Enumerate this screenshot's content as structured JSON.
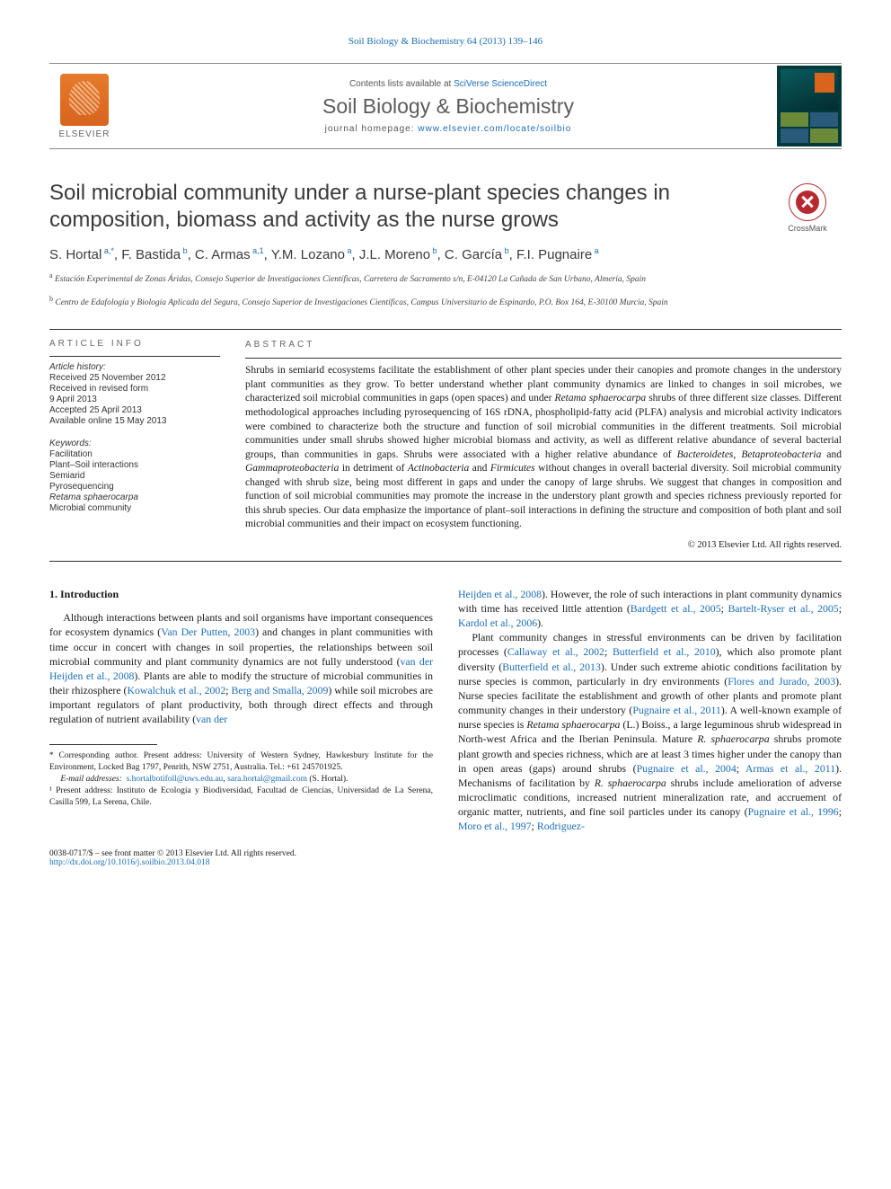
{
  "top_link": "Soil Biology & Biochemistry 64 (2013) 139–146",
  "header": {
    "contents_prefix": "Contents lists available at ",
    "contents_link": "SciVerse ScienceDirect",
    "journal": "Soil Biology & Biochemistry",
    "homepage_prefix": "journal homepage: ",
    "homepage": "www.elsevier.com/locate/soilbio",
    "publisher": "ELSEVIER"
  },
  "crossmark": "CrossMark",
  "title": "Soil microbial community under a nurse-plant species changes in composition, biomass and activity as the nurse grows",
  "authors": [
    {
      "name": "S. Hortal",
      "sup": "a,*"
    },
    {
      "name": "F. Bastida",
      "sup": "b"
    },
    {
      "name": "C. Armas",
      "sup": "a,1"
    },
    {
      "name": "Y.M. Lozano",
      "sup": "a"
    },
    {
      "name": "J.L. Moreno",
      "sup": "b"
    },
    {
      "name": "C. García",
      "sup": "b"
    },
    {
      "name": "F.I. Pugnaire",
      "sup": "a"
    }
  ],
  "affiliations": {
    "a": "Estación Experimental de Zonas Áridas, Consejo Superior de Investigaciones Científicas, Carretera de Sacramento s/n, E-04120 La Cañada de San Urbano, Almería, Spain",
    "b": "Centro de Edafología y Biología Aplicada del Segura, Consejo Superior de Investigaciones Científicas, Campus Universitario de Espinardo, P.O. Box 164, E-30100 Murcia, Spain"
  },
  "article_info": {
    "heading": "ARTICLE INFO",
    "history_label": "Article history:",
    "received": "Received 25 November 2012",
    "revised": "Received in revised form",
    "revised_date": "9 April 2013",
    "accepted": "Accepted 25 April 2013",
    "online": "Available online 15 May 2013",
    "keywords_label": "Keywords:",
    "keywords": [
      "Facilitation",
      "Plant–Soil interactions",
      "Semiarid",
      "Pyrosequencing",
      "Retama sphaerocarpa",
      "Microbial community"
    ]
  },
  "abstract": {
    "heading": "ABSTRACT",
    "text": "Shrubs in semiarid ecosystems facilitate the establishment of other plant species under their canopies and promote changes in the understory plant communities as they grow. To better understand whether plant community dynamics are linked to changes in soil microbes, we characterized soil microbial communities in gaps (open spaces) and under Retama sphaerocarpa shrubs of three different size classes. Different methodological approaches including pyrosequencing of 16S rDNA, phospholipid-fatty acid (PLFA) analysis and microbial activity indicators were combined to characterize both the structure and function of soil microbial communities in the different treatments. Soil microbial communities under small shrubs showed higher microbial biomass and activity, as well as different relative abundance of several bacterial groups, than communities in gaps. Shrubs were associated with a higher relative abundance of Bacteroidetes, Betaproteobacteria and Gammaproteobacteria in detriment of Actinobacteria and Firmicutes without changes in overall bacterial diversity. Soil microbial community changed with shrub size, being most different in gaps and under the canopy of large shrubs. We suggest that changes in composition and function of soil microbial communities may promote the increase in the understory plant growth and species richness previously reported for this shrub species. Our data emphasize the importance of plant–soil interactions in defining the structure and composition of both plant and soil microbial communities and their impact on ecosystem functioning.",
    "copyright": "© 2013 Elsevier Ltd. All rights reserved."
  },
  "intro": {
    "heading": "1. Introduction",
    "p1_a": "Although interactions between plants and soil organisms have important consequences for ecosystem dynamics (",
    "p1_link1": "Van Der Putten, 2003",
    "p1_b": ") and changes in plant communities with time occur in concert with changes in soil properties, the relationships between soil microbial community and plant community dynamics are not fully understood (",
    "p1_link2": "van der Heijden et al., 2008",
    "p1_c": "). Plants are able to modify the structure of microbial communities in their rhizosphere (",
    "p1_link3": "Kowalchuk et al., 2002",
    "p1_sep1": "; ",
    "p1_link4": "Berg and Smalla, 2009",
    "p1_d": ") while soil microbes are important regulators of plant productivity, both through direct effects and through regulation of nutrient availability (",
    "p1_link5": "van der",
    "col2_cont_link": "Heijden et al., 2008",
    "col2_cont_a": "). However, the role of such interactions in plant community dynamics with time has received little attention (",
    "col2_link1": "Bardgett et al., 2005",
    "col2_sep1": "; ",
    "col2_link2": "Bartelt-Ryser et al., 2005",
    "col2_sep2": "; ",
    "col2_link3": "Kardol et al., 2006",
    "col2_cont_b": ").",
    "p2_a": "Plant community changes in stressful environments can be driven by facilitation processes (",
    "p2_link1": "Callaway et al., 2002",
    "p2_sep1": "; ",
    "p2_link2": "Butterfield et al., 2010",
    "p2_b": "), which also promote plant diversity (",
    "p2_link3": "Butterfield et al., 2013",
    "p2_c": "). Under such extreme abiotic conditions facilitation by nurse species is common, particularly in dry environments (",
    "p2_link4": "Flores and Jurado, 2003",
    "p2_d": "). Nurse species facilitate the establishment and growth of other plants and promote plant community changes in their understory (",
    "p2_link5": "Pugnaire et al., 2011",
    "p2_e": "). A well-known example of nurse species is ",
    "p2_sp1": "Retama sphaerocarpa",
    "p2_f": " (L.) Boiss., a large leguminous shrub widespread in North-west Africa and the Iberian Peninsula. Mature ",
    "p2_sp2": "R. sphaerocarpa",
    "p2_g": " shrubs promote plant growth and species richness, which are at least 3 times higher under the canopy than in open areas (gaps) around shrubs (",
    "p2_link6": "Pugnaire et al., 2004",
    "p2_sep2": "; ",
    "p2_link7": "Armas et al., 2011",
    "p2_h": "). Mechanisms of facilitation by ",
    "p2_sp3": "R. sphaerocarpa",
    "p2_i": " shrubs include amelioration of adverse microclimatic conditions, increased nutrient mineralization rate, and accruement of organic matter, nutrients, and fine soil particles under its canopy (",
    "p2_link8": "Pugnaire et al., 1996",
    "p2_sep3": "; ",
    "p2_link9": "Moro et al., 1997",
    "p2_sep4": "; ",
    "p2_link10": "Rodriguez-"
  },
  "footnotes": {
    "corr_label": "* Corresponding author. Present address: University of Western Sydney, Hawkesbury Institute for the Environment, Locked Bag 1797, Penrith, NSW 2751, Australia. Tel.: +61 245701925.",
    "email_label": "E-mail addresses:",
    "email1": "s.hortalbotifoll@uws.edu.au",
    "email_sep": ", ",
    "email2": "sara.hortal@gmail.com",
    "email_tail": " (S. Hortal).",
    "present": "¹ Present address: Instituto de Ecología y Biodiversidad, Facultad de Ciencias, Universidad de La Serena, Casilla 599, La Serena, Chile."
  },
  "footer": {
    "left1": "0038-0717/$ – see front matter © 2013 Elsevier Ltd. All rights reserved.",
    "doi": "http://dx.doi.org/10.1016/j.soilbio.2013.04.018"
  },
  "colors": {
    "link": "#1a6db8",
    "elsevier_orange": "#d8641e",
    "cover_bg": "#013a3c",
    "crossmark_red": "#b8292f",
    "text_gray": "#5c5c5c"
  }
}
